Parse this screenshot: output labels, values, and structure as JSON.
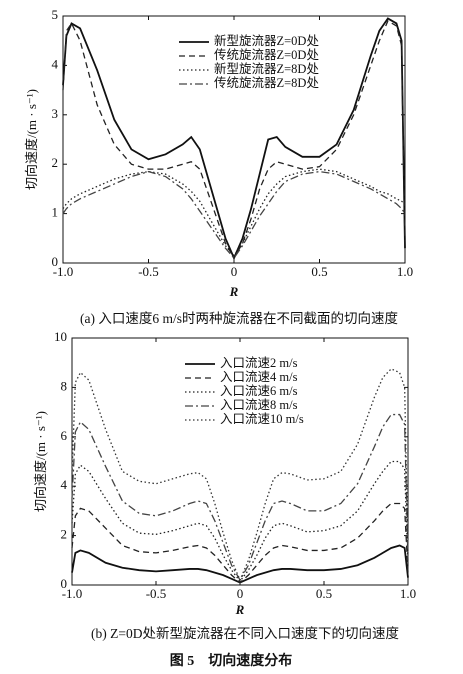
{
  "chart_data": [
    {
      "type": "line",
      "caption": "(a) 入口速度6 m/s时两种旋流器在不同截面的切向速度",
      "x_label": "R",
      "y_label": "切向速度/(m · s⁻¹)",
      "x": [
        -1.0,
        -0.98,
        -0.95,
        -0.9,
        -0.8,
        -0.7,
        -0.6,
        -0.5,
        -0.4,
        -0.3,
        -0.25,
        -0.2,
        -0.15,
        -0.1,
        -0.05,
        0,
        0.05,
        0.1,
        0.15,
        0.2,
        0.25,
        0.3,
        0.4,
        0.5,
        0.6,
        0.7,
        0.8,
        0.85,
        0.9,
        0.95,
        0.98,
        1.0
      ],
      "xlim": [
        -1,
        1
      ],
      "xticks": [
        {
          "value": -1,
          "label": "-1.0"
        },
        -0.5,
        0,
        0.5,
        {
          "value": 1,
          "label": "1.0"
        }
      ],
      "ylim": [
        0,
        5
      ],
      "yticks": [
        0,
        1,
        2,
        3,
        4,
        5
      ],
      "legend": "upper center",
      "series": [
        {
          "name": "新型旋流器Z=0D处",
          "color": "#111111",
          "dash": "solid",
          "values": [
            3.6,
            4.6,
            4.85,
            4.75,
            3.9,
            2.9,
            2.3,
            2.1,
            2.2,
            2.4,
            2.55,
            2.3,
            1.7,
            1.1,
            0.5,
            0.1,
            0.5,
            1.1,
            1.8,
            2.5,
            2.55,
            2.35,
            2.15,
            2.15,
            2.4,
            3.1,
            4.2,
            4.7,
            4.95,
            4.85,
            4.5,
            0.3
          ]
        },
        {
          "name": "传统旋流器Z=0D处",
          "color": "#222222",
          "dash": "dashed",
          "values": [
            3.5,
            4.7,
            4.85,
            4.5,
            3.2,
            2.4,
            2.0,
            1.9,
            1.9,
            2.0,
            2.05,
            1.9,
            1.4,
            0.9,
            0.4,
            0.1,
            0.4,
            0.9,
            1.5,
            1.9,
            2.05,
            2.0,
            1.9,
            1.95,
            2.3,
            3.0,
            4.0,
            4.5,
            4.9,
            4.8,
            4.4,
            0.3
          ]
        },
        {
          "name": "新型旋流器Z=8D处",
          "color": "#222222",
          "dash": "dotted",
          "values": [
            1.1,
            1.2,
            1.3,
            1.4,
            1.55,
            1.7,
            1.8,
            1.85,
            1.8,
            1.6,
            1.45,
            1.25,
            0.95,
            0.65,
            0.35,
            0.15,
            0.4,
            0.75,
            1.1,
            1.4,
            1.6,
            1.75,
            1.85,
            1.9,
            1.85,
            1.7,
            1.55,
            1.45,
            1.4,
            1.3,
            1.25,
            1.2
          ]
        },
        {
          "name": "传统旋流器Z=8D处",
          "color": "#444444",
          "dash": "dashdot",
          "values": [
            1.0,
            1.1,
            1.2,
            1.3,
            1.45,
            1.6,
            1.75,
            1.85,
            1.75,
            1.5,
            1.3,
            1.05,
            0.8,
            0.55,
            0.3,
            0.1,
            0.35,
            0.65,
            0.95,
            1.2,
            1.45,
            1.65,
            1.8,
            1.85,
            1.8,
            1.65,
            1.5,
            1.4,
            1.3,
            1.2,
            1.1,
            1.0
          ]
        }
      ]
    },
    {
      "type": "line",
      "caption": "(b) Z=0D处新型旋流器在不同入口速度下的切向速度",
      "x_label": "R",
      "y_label": "切向速度/(m · s⁻¹)",
      "x": [
        -1.0,
        -0.98,
        -0.95,
        -0.9,
        -0.8,
        -0.7,
        -0.6,
        -0.5,
        -0.4,
        -0.3,
        -0.25,
        -0.2,
        -0.15,
        -0.1,
        -0.05,
        0,
        0.05,
        0.1,
        0.15,
        0.2,
        0.25,
        0.3,
        0.4,
        0.5,
        0.6,
        0.7,
        0.8,
        0.85,
        0.9,
        0.95,
        0.98,
        1.0
      ],
      "xlim": [
        -1,
        1
      ],
      "xticks": [
        {
          "value": -1,
          "label": "-1.0"
        },
        -0.5,
        0,
        0.5,
        {
          "value": 1,
          "label": "1.0"
        }
      ],
      "ylim": [
        0,
        10
      ],
      "yticks": [
        0,
        2,
        4,
        6,
        8,
        10
      ],
      "legend": "upper center",
      "series": [
        {
          "name": "入口流速2 m/s",
          "color": "#111111",
          "dash": "solid",
          "values": [
            0.5,
            1.3,
            1.4,
            1.3,
            0.9,
            0.7,
            0.6,
            0.55,
            0.6,
            0.65,
            0.65,
            0.6,
            0.5,
            0.4,
            0.25,
            0.1,
            0.25,
            0.4,
            0.5,
            0.6,
            0.65,
            0.65,
            0.6,
            0.6,
            0.65,
            0.8,
            1.1,
            1.3,
            1.5,
            1.6,
            1.5,
            0.3
          ]
        },
        {
          "name": "入口流速4 m/s",
          "color": "#222222",
          "dash": "dashed",
          "values": [
            1.5,
            2.8,
            3.1,
            3.0,
            2.3,
            1.6,
            1.35,
            1.3,
            1.4,
            1.55,
            1.6,
            1.5,
            1.2,
            0.8,
            0.4,
            0.1,
            0.4,
            0.8,
            1.2,
            1.5,
            1.6,
            1.55,
            1.4,
            1.4,
            1.5,
            1.9,
            2.6,
            3.0,
            3.3,
            3.3,
            3.1,
            0.5
          ]
        },
        {
          "name": "入口流速6 m/s",
          "color": "#222222",
          "dash": "dotted",
          "values": [
            2.5,
            4.5,
            4.85,
            4.6,
            3.5,
            2.5,
            2.1,
            2.05,
            2.2,
            2.4,
            2.5,
            2.4,
            1.9,
            1.2,
            0.6,
            0.15,
            0.6,
            1.2,
            1.9,
            2.4,
            2.5,
            2.4,
            2.15,
            2.2,
            2.4,
            3.0,
            4.1,
            4.6,
            5.0,
            5.0,
            4.7,
            0.8
          ]
        },
        {
          "name": "入口流速8 m/s",
          "color": "#444444",
          "dash": "dashdot",
          "values": [
            3.5,
            6.2,
            6.6,
            6.3,
            4.8,
            3.4,
            2.9,
            2.8,
            3.0,
            3.3,
            3.4,
            3.3,
            2.6,
            1.7,
            0.8,
            0.2,
            0.8,
            1.7,
            2.6,
            3.3,
            3.4,
            3.3,
            3.0,
            3.0,
            3.3,
            4.1,
            5.6,
            6.4,
            6.9,
            6.9,
            6.5,
            1.0
          ]
        },
        {
          "name": "入口流速10 m/s",
          "color": "#333333",
          "dash": "dotted",
          "values": [
            4.5,
            8.2,
            8.6,
            8.3,
            6.3,
            4.6,
            4.2,
            4.1,
            4.3,
            4.5,
            4.55,
            4.3,
            3.3,
            2.1,
            1.0,
            0.2,
            1.0,
            2.1,
            3.3,
            4.3,
            4.55,
            4.5,
            4.25,
            4.3,
            4.6,
            5.7,
            7.6,
            8.4,
            8.75,
            8.6,
            8.0,
            1.2
          ]
        }
      ]
    }
  ],
  "figure_caption": "图 5　切向速度分布"
}
